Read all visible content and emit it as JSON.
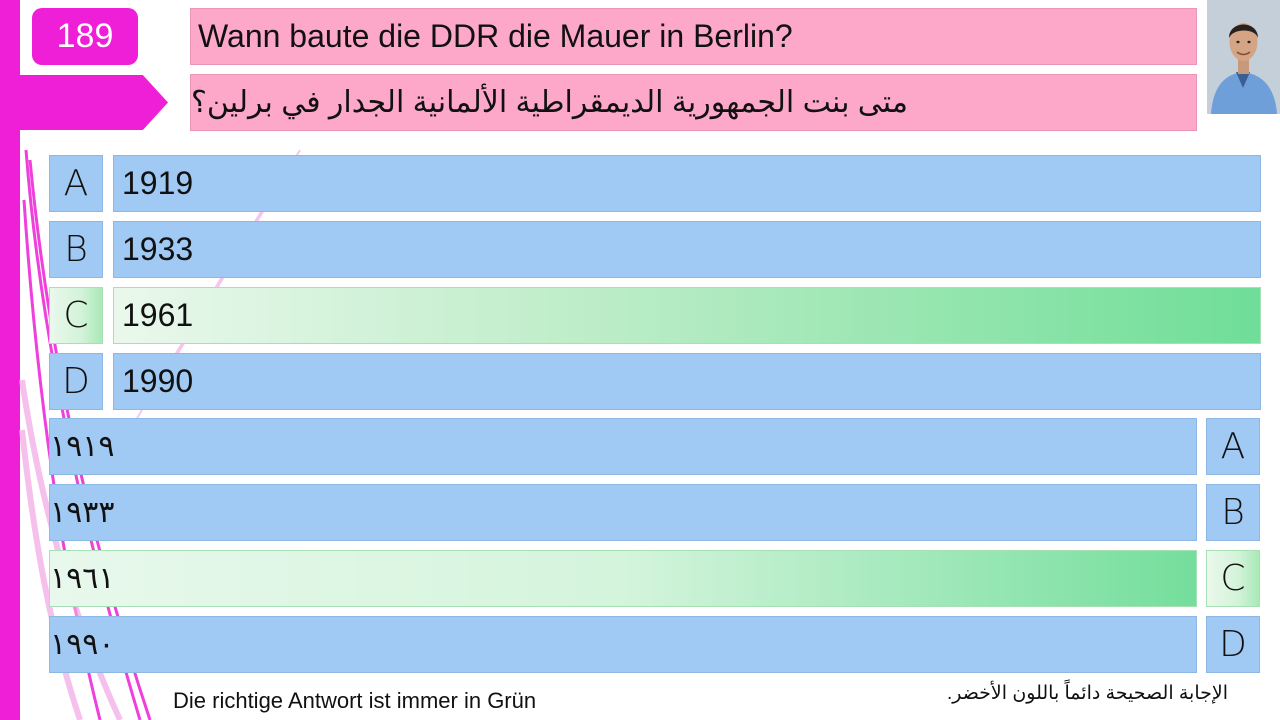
{
  "question": {
    "number": "189",
    "german": "Wann baute die DDR die Mauer in Berlin?",
    "arabic": "متى بنت الجمهورية الديمقراطية الألمانية الجدار في برلين؟"
  },
  "answers_german": [
    {
      "letter": "A",
      "text": "1919",
      "correct": false
    },
    {
      "letter": "B",
      "text": "1933",
      "correct": false
    },
    {
      "letter": "C",
      "text": "1961",
      "correct": true
    },
    {
      "letter": "D",
      "text": "1990",
      "correct": false
    }
  ],
  "answers_arabic": [
    {
      "letter": "A",
      "text": "١٩١٩",
      "correct": false
    },
    {
      "letter": "B",
      "text": "١٩٣٣",
      "correct": false
    },
    {
      "letter": "C",
      "text": "١٩٦١",
      "correct": true
    },
    {
      "letter": "D",
      "text": "١٩٩٠",
      "correct": false
    }
  ],
  "footer": {
    "german": "Die richtige Antwort ist immer in Grün",
    "arabic": "الإجابة الصحيحة دائماً باللون الأخضر."
  },
  "colors": {
    "accent": "#ee1fd6",
    "question_bg": "#fda7c9",
    "answer_bg": "#a0c9f4",
    "correct_green": "#6fde98"
  }
}
